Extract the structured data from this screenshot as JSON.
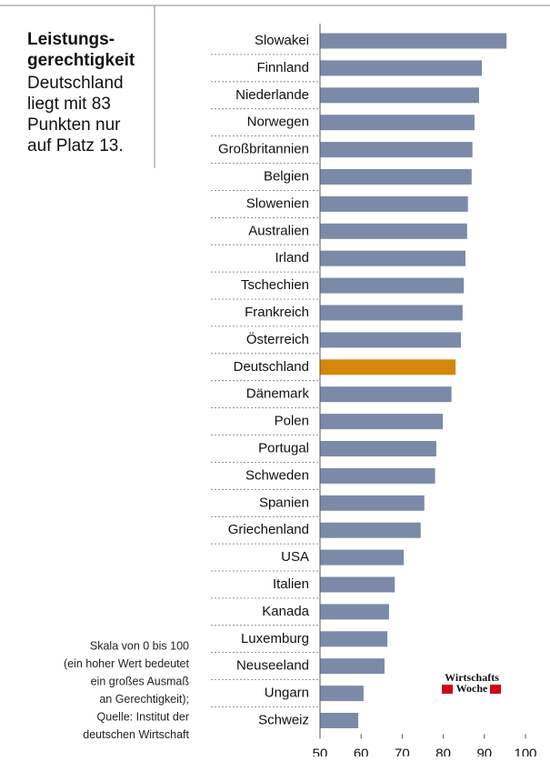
{
  "chart_data": {
    "type": "bar",
    "orientation": "horizontal",
    "title_lines": [
      "Leistungs-",
      "gerechtigkeit"
    ],
    "subtitle_lines": [
      "Deutschland",
      "liegt mit 83",
      "Punkten nur",
      "auf Platz 13."
    ],
    "note_lines": [
      "Skala von 0 bis 100",
      "(ein hoher Wert bedeutet",
      "ein großes Ausmaß",
      "an Gerechtigkeit);",
      "Quelle: Institut der",
      "deutschen Wirtschaft"
    ],
    "logo_lines": [
      "Wirtschafts",
      "Woche"
    ],
    "categories": [
      "Slowakei",
      "Finnland",
      "Niederlande",
      "Norwegen",
      "Großbritannien",
      "Belgien",
      "Slowenien",
      "Australien",
      "Irland",
      "Tschechien",
      "Frankreich",
      "Österreich",
      "Deutschland",
      "Dänemark",
      "Polen",
      "Portugal",
      "Schweden",
      "Spanien",
      "Griechenland",
      "USA",
      "Italien",
      "Kanada",
      "Luxemburg",
      "Neuseeland",
      "Ungarn",
      "Schweiz"
    ],
    "values": [
      95.4,
      89.4,
      88.7,
      87.6,
      87.1,
      86.9,
      86,
      85.8,
      85.4,
      85,
      84.7,
      84.3,
      83,
      82,
      79.9,
      78.3,
      78,
      75.4,
      74.5,
      70.4,
      68.2,
      66.8,
      66.4,
      65.7,
      60.6,
      59.3
    ],
    "colors": [
      "#7b8aa8",
      "#7b8aa8",
      "#7b8aa8",
      "#7b8aa8",
      "#7b8aa8",
      "#7b8aa8",
      "#7b8aa8",
      "#7b8aa8",
      "#7b8aa8",
      "#7b8aa8",
      "#7b8aa8",
      "#7b8aa8",
      "#d4870a",
      "#7b8aa8",
      "#7b8aa8",
      "#7b8aa8",
      "#7b8aa8",
      "#7b8aa8",
      "#7b8aa8",
      "#7b8aa8",
      "#7b8aa8",
      "#7b8aa8",
      "#7b8aa8",
      "#7b8aa8",
      "#7b8aa8",
      "#7b8aa8"
    ],
    "xlim": [
      50,
      100
    ],
    "xticks": [
      50,
      60,
      70,
      80,
      90,
      100
    ]
  }
}
